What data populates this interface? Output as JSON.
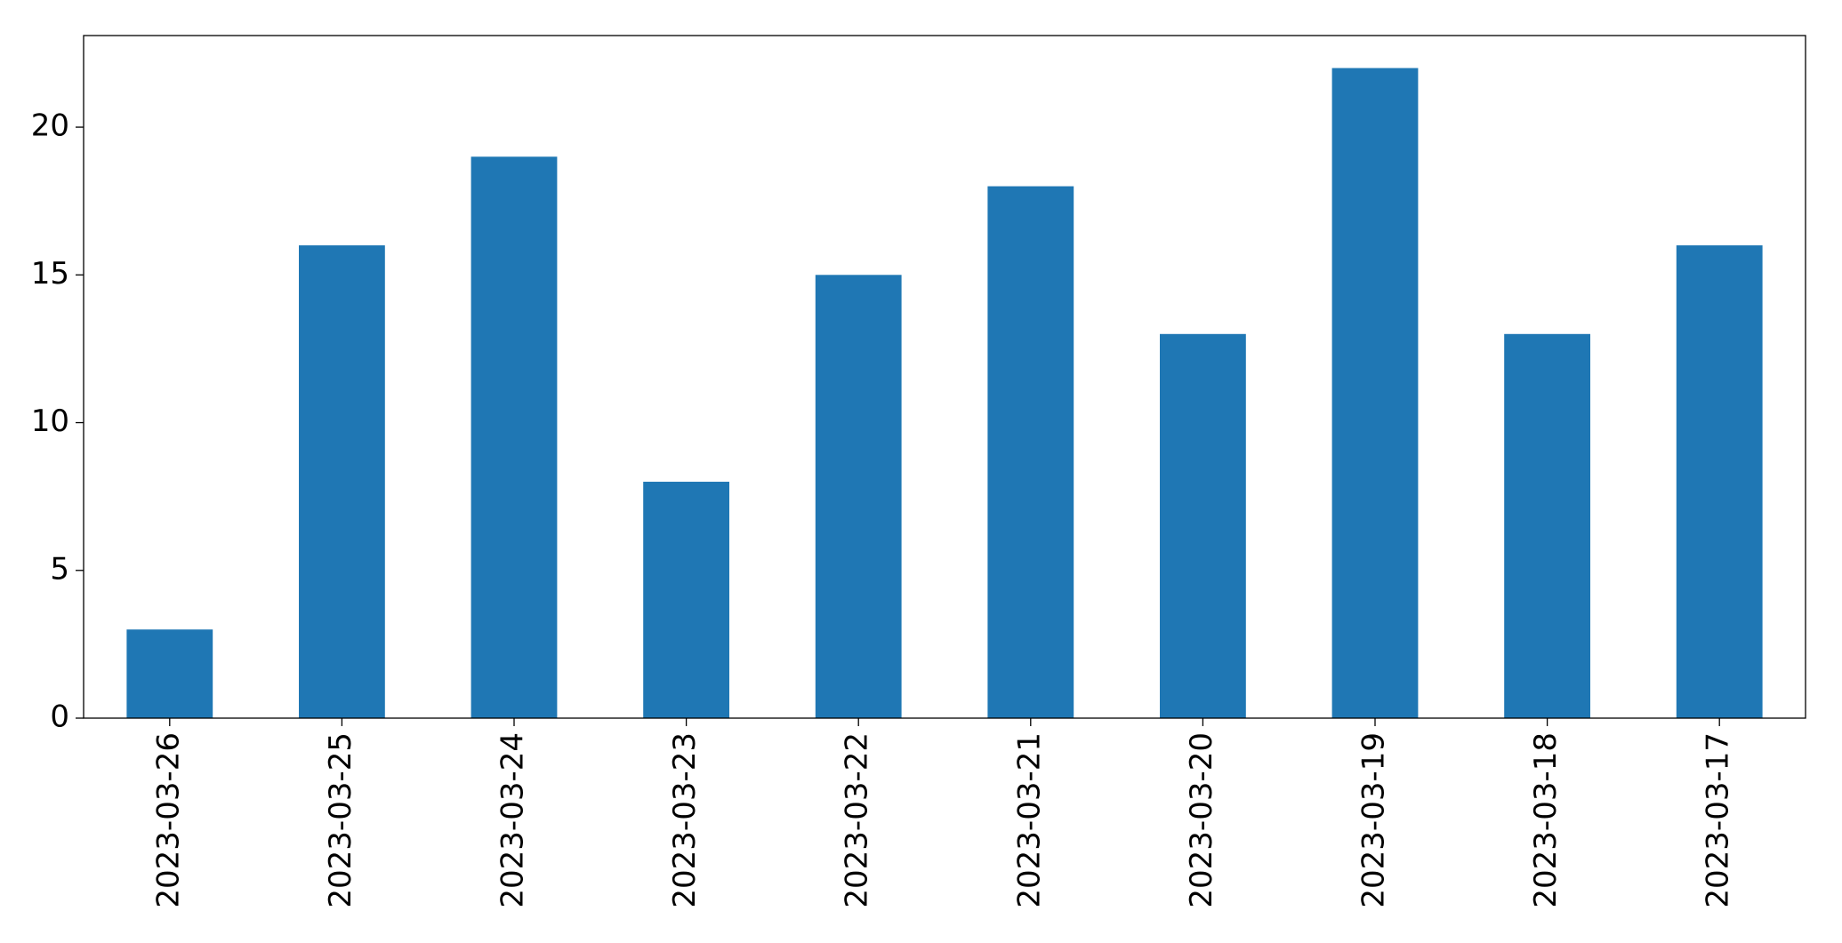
{
  "chart_data": {
    "type": "bar",
    "categories": [
      "2023-03-26",
      "2023-03-25",
      "2023-03-24",
      "2023-03-23",
      "2023-03-22",
      "2023-03-21",
      "2023-03-20",
      "2023-03-19",
      "2023-03-18",
      "2023-03-17"
    ],
    "values": [
      3,
      16,
      19,
      8,
      15,
      18,
      13,
      22,
      13,
      16
    ],
    "color": "#1f77b4",
    "ylim": [
      0,
      23.1
    ],
    "yticks": [
      0,
      5,
      10,
      15,
      20
    ],
    "grid": false
  }
}
